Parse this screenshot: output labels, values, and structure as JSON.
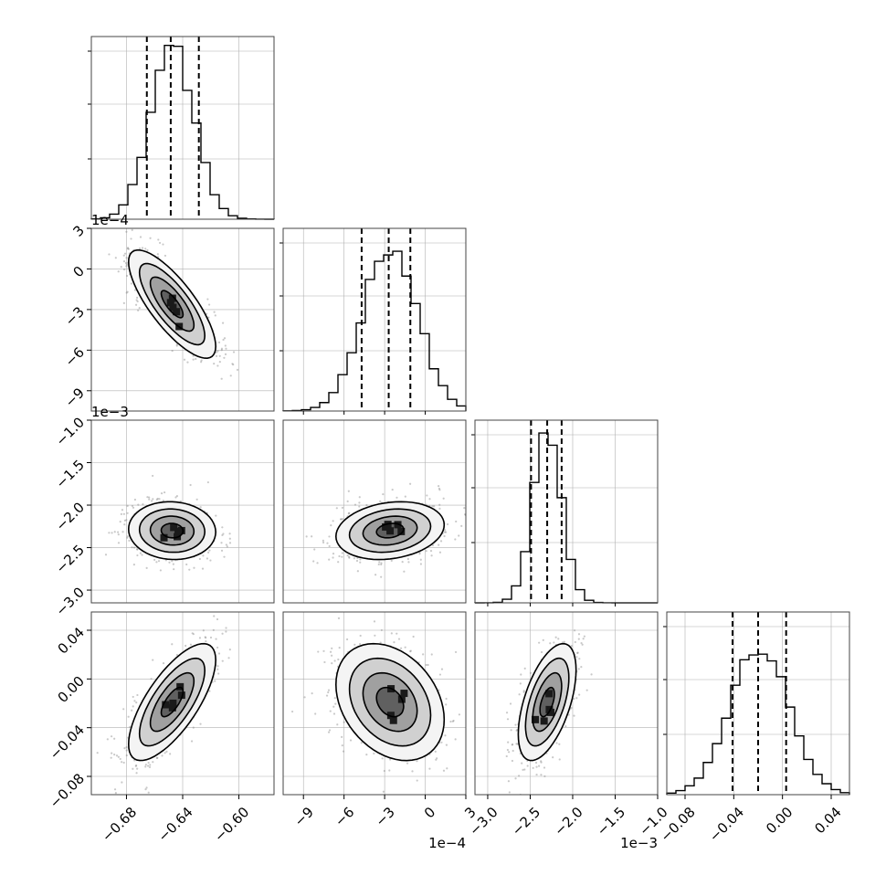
{
  "chart_data": {
    "type": "corner",
    "parameters": 4,
    "parameter_labels": [
      "",
      "",
      "",
      ""
    ],
    "axes": [
      {
        "range": [
          -0.705,
          -0.575
        ],
        "ticks": [
          -0.68,
          -0.64,
          -0.6
        ],
        "tick_labels": [
          "−0.68",
          "−0.64",
          "−0.60"
        ],
        "offset_text": ""
      },
      {
        "range": [
          -10.5,
          3.0
        ],
        "ticks": [
          -9,
          -6,
          -3,
          0,
          3
        ],
        "tick_labels": [
          "−9",
          "−6",
          "−3",
          "0",
          "3"
        ],
        "offset_text": "1e−4"
      },
      {
        "range": [
          -3.15,
          -1.0
        ],
        "ticks": [
          -3.0,
          -2.5,
          -2.0,
          -1.5,
          -1.0
        ],
        "tick_labels": [
          "−3.0",
          "−2.5",
          "−2.0",
          "−1.5",
          "−1.0"
        ],
        "offset_text": "1e−3"
      },
      {
        "range": [
          -0.095,
          0.055
        ],
        "ticks": [
          -0.08,
          -0.04,
          0.0,
          0.04
        ],
        "tick_labels": [
          "−0.08",
          "−0.04",
          "0.00",
          "0.04"
        ],
        "offset_text": ""
      }
    ],
    "marginals": [
      {
        "param": 0,
        "quantiles": [
          -0.6655,
          -0.6485,
          -0.6285
        ],
        "mean": -0.6475,
        "sd": 0.0155,
        "peak_fraction": 0.96
      },
      {
        "param": 1,
        "quantiles": [
          -4.7,
          -2.7,
          -1.1
        ],
        "mean": -2.6,
        "sd": 2.0,
        "peak_fraction": 0.92
      },
      {
        "param": 2,
        "quantiles": [
          -2.49,
          -2.3,
          -2.13
        ],
        "mean": -2.3,
        "sd": 0.17,
        "peak_fraction": 0.94
      },
      {
        "param": 3,
        "quantiles": [
          -0.041,
          -0.02,
          0.003
        ],
        "mean": -0.019,
        "sd": 0.024,
        "peak_fraction": 0.82
      }
    ],
    "joint_panels": [
      {
        "x_param": 0,
        "y_param": 1,
        "rho": -0.78
      },
      {
        "x_param": 0,
        "y_param": 2,
        "rho": -0.05
      },
      {
        "x_param": 1,
        "y_param": 2,
        "rho": 0.2
      },
      {
        "x_param": 0,
        "y_param": 3,
        "rho": 0.72
      },
      {
        "x_param": 1,
        "y_param": 3,
        "rho": -0.3
      },
      {
        "x_param": 2,
        "y_param": 3,
        "rho": 0.55
      }
    ],
    "contour_levels_sigma": [
      0.5,
      1.0,
      1.5,
      2.0
    ],
    "grid": true,
    "colors": {
      "line": "#000000",
      "grid": "#b0b0b0",
      "scatter": "#888888",
      "frame": "#444444"
    }
  }
}
